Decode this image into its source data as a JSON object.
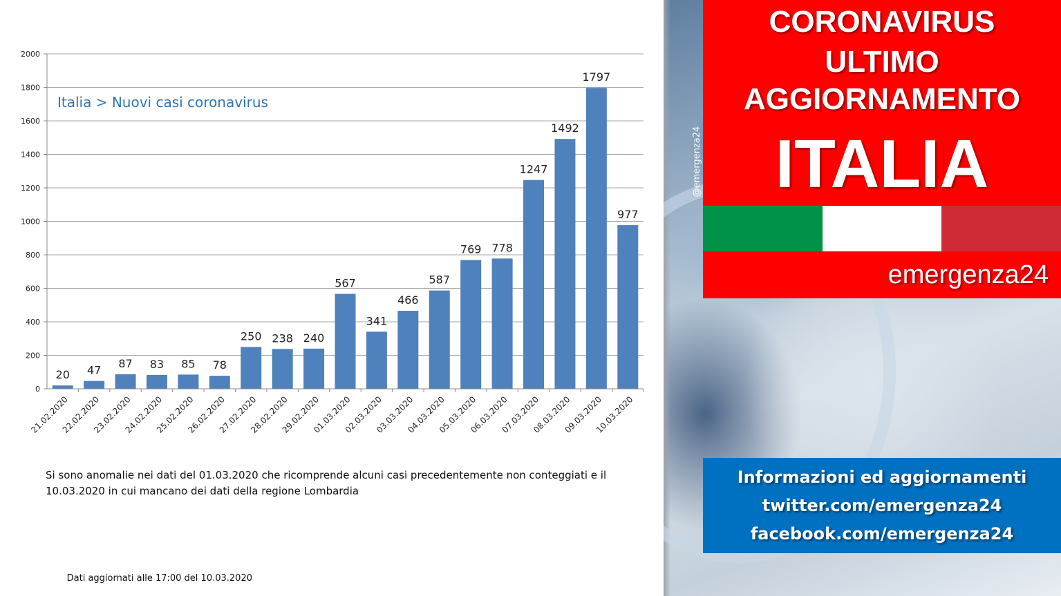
{
  "chart_data": {
    "type": "bar",
    "title": "Italia > Nuovi casi coronavirus",
    "categories": [
      "21.02.2020",
      "22.02.2020",
      "23.02.2020",
      "24.02.2020",
      "25.02.2020",
      "26.02.2020",
      "27.02.2020",
      "28.02.2020",
      "29.02.2020",
      "01.03.2020",
      "02.03.2020",
      "03.03.2020",
      "04.03.2020",
      "05.03.2020",
      "06.03.2020",
      "07.03.2020",
      "08.03.2020",
      "09.03.2020",
      "10.03.2020"
    ],
    "values": [
      20,
      47,
      87,
      83,
      85,
      78,
      250,
      238,
      240,
      567,
      341,
      466,
      587,
      769,
      778,
      1247,
      1492,
      1797,
      977
    ],
    "ylim": [
      0,
      2000
    ],
    "yticks": [
      0,
      200,
      400,
      600,
      800,
      1000,
      1200,
      1400,
      1600,
      1800,
      2000
    ],
    "grid": true,
    "legend": "none",
    "bar_color": "#4f81bd",
    "title_color": "#2e75b6"
  },
  "note": {
    "line1": "Si sono anomalie nei dati del 01.03.2020 che ricomprende alcuni casi precedentemente non conteggiati e il",
    "line2": "10.03.2020 in cui mancano dei dati della regione Lombardia"
  },
  "updated": "Dati aggiornati alle 17:00 del 10.03.2020",
  "side": {
    "handle": "@emergenza24",
    "banner": {
      "line1": "CORONAVIRUS",
      "line2": "ULTIMO",
      "line3": "AGGIORNAMENTO",
      "line4": "ITALIA"
    },
    "flag_colors": [
      "#009246",
      "#ffffff",
      "#ce2b37"
    ],
    "banner_color": "#ff0000",
    "brand": "emergenza24",
    "info": {
      "line1": "Informazioni ed aggiornamenti",
      "line2": "twitter.com/emergenza24",
      "line3": "facebook.com/emergenza24"
    },
    "info_color": "#0070c0"
  }
}
